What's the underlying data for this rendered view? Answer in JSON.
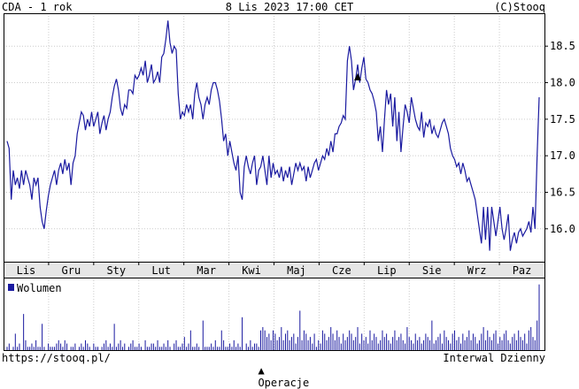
{
  "header": {
    "title": "CDA - 1 rok",
    "datetime": "8 Lis 2023 17:00 CET",
    "copyright": "(C)Stooq"
  },
  "footer": {
    "url": "https://stooq.pl/",
    "operations_marker": "▲",
    "operations_label": "Operacje",
    "interval": "Interwal Dzienny"
  },
  "chart_data": [
    {
      "type": "line",
      "series": [
        {
          "values": [
            17.2,
            17.1,
            16.4,
            16.8,
            16.6,
            16.7,
            16.55,
            16.8,
            16.6,
            16.8,
            16.7,
            16.6,
            16.4,
            16.7,
            16.6,
            16.7,
            16.3,
            16.1,
            16.0,
            16.25,
            16.45,
            16.6,
            16.7,
            16.8,
            16.6,
            16.8,
            16.9,
            16.75,
            16.95,
            16.8,
            16.9,
            16.6,
            16.9,
            17.0,
            17.3,
            17.45,
            17.6,
            17.55,
            17.35,
            17.5,
            17.4,
            17.6,
            17.4,
            17.5,
            17.6,
            17.3,
            17.45,
            17.55,
            17.35,
            17.5,
            17.6,
            17.8,
            17.95,
            18.05,
            17.9,
            17.65,
            17.55,
            17.7,
            17.65,
            17.9,
            17.9,
            17.85,
            18.1,
            18.05,
            18.1,
            18.2,
            18.1,
            18.3,
            18.0,
            18.1,
            18.25,
            18.0,
            18.05,
            18.15,
            18.0,
            18.35,
            18.4,
            18.6,
            18.85,
            18.55,
            18.4,
            18.5,
            18.45,
            17.85,
            17.5,
            17.6,
            17.55,
            17.7,
            17.6,
            17.7,
            17.5,
            17.85,
            18.0,
            17.8,
            17.7,
            17.5,
            17.7,
            17.8,
            17.7,
            17.9,
            18.0,
            18.0,
            17.9,
            17.75,
            17.5,
            17.2,
            17.3,
            17.0,
            17.2,
            17.05,
            16.9,
            16.8,
            17.0,
            16.5,
            16.4,
            16.85,
            17.0,
            16.85,
            16.75,
            16.9,
            17.0,
            16.6,
            16.8,
            16.85,
            17.0,
            16.8,
            16.6,
            17.0,
            16.7,
            16.9,
            16.75,
            16.8,
            16.7,
            16.85,
            16.65,
            16.8,
            16.7,
            16.85,
            16.6,
            16.75,
            16.9,
            16.8,
            16.9,
            16.8,
            16.85,
            16.65,
            16.85,
            16.7,
            16.8,
            16.9,
            16.95,
            16.8,
            16.9,
            17.0,
            16.95,
            17.1,
            17.0,
            17.2,
            17.05,
            17.3,
            17.3,
            17.4,
            17.45,
            17.55,
            17.5,
            18.3,
            18.5,
            18.3,
            17.9,
            18.05,
            18.25,
            18.0,
            18.2,
            18.35,
            18.05,
            18.0,
            17.9,
            17.85,
            17.75,
            17.6,
            17.2,
            17.4,
            17.05,
            17.5,
            17.9,
            17.7,
            17.85,
            17.4,
            17.8,
            17.2,
            17.6,
            17.05,
            17.4,
            17.7,
            17.6,
            17.45,
            17.8,
            17.65,
            17.5,
            17.4,
            17.35,
            17.6,
            17.25,
            17.45,
            17.4,
            17.5,
            17.3,
            17.4,
            17.3,
            17.25,
            17.35,
            17.45,
            17.5,
            17.4,
            17.3,
            17.1,
            17.0,
            16.95,
            16.85,
            16.9,
            16.75,
            16.9,
            16.8,
            16.65,
            16.7,
            16.6,
            16.5,
            16.4,
            16.2,
            16.0,
            15.8,
            16.3,
            15.85,
            16.3,
            15.7,
            16.3,
            16.1,
            15.9,
            16.1,
            16.3,
            16.0,
            15.85,
            16.0,
            16.2,
            15.7,
            15.85,
            15.95,
            15.8,
            15.95,
            16.0,
            15.9,
            15.95,
            16.0,
            16.1,
            15.95,
            16.3,
            16.0,
            17.0,
            17.8
          ]
        }
      ],
      "x_tick_labels": [
        "Lis",
        "Gru",
        "Sty",
        "Lut",
        "Mar",
        "Kwi",
        "Maj",
        "Cze",
        "Lip",
        "Sie",
        "Wrz",
        "Paz"
      ],
      "y_tick_labels": [
        "18.5",
        "18.0",
        "17.5",
        "17.0",
        "16.5",
        "16.0"
      ],
      "ylim": [
        15.55,
        18.95
      ],
      "grid": true,
      "markers": [
        {
          "index": 170,
          "symbol": "▲"
        }
      ],
      "line_color": "#1a1aa0",
      "marker_color": "#000000"
    },
    {
      "type": "bar",
      "legend": "Wolumen",
      "legend_placement": "top-left",
      "bar_color": "#1a1aa0",
      "values": [
        1,
        2,
        0,
        1,
        5,
        1,
        2,
        0,
        11,
        3,
        1,
        1,
        2,
        1,
        3,
        1,
        1,
        8,
        1,
        0,
        2,
        1,
        1,
        1,
        2,
        3,
        2,
        1,
        3,
        2,
        0,
        1,
        1,
        2,
        0,
        1,
        2,
        1,
        3,
        2,
        1,
        0,
        2,
        1,
        1,
        0,
        1,
        2,
        3,
        1,
        2,
        1,
        8,
        1,
        2,
        3,
        1,
        2,
        0,
        1,
        2,
        3,
        1,
        1,
        2,
        1,
        0,
        3,
        1,
        1,
        2,
        2,
        1,
        3,
        1,
        1,
        2,
        1,
        3,
        1,
        0,
        2,
        3,
        1,
        1,
        2,
        4,
        1,
        2,
        6,
        1,
        1,
        2,
        1,
        0,
        9,
        1,
        1,
        1,
        2,
        1,
        3,
        1,
        1,
        6,
        3,
        1,
        1,
        2,
        1,
        3,
        1,
        2,
        1,
        10,
        0,
        2,
        1,
        3,
        1,
        2,
        2,
        1,
        6,
        7,
        6,
        4,
        5,
        3,
        6,
        5,
        3,
        4,
        7,
        3,
        5,
        6,
        3,
        4,
        5,
        2,
        4,
        12,
        3,
        6,
        5,
        3,
        4,
        2,
        5,
        1,
        3,
        2,
        6,
        5,
        3,
        4,
        7,
        5,
        3,
        6,
        4,
        2,
        5,
        3,
        4,
        6,
        5,
        3,
        4,
        7,
        2,
        5,
        3,
        4,
        2,
        6,
        3,
        5,
        4,
        2,
        3,
        6,
        4,
        5,
        3,
        2,
        4,
        6,
        3,
        4,
        5,
        3,
        2,
        7,
        4,
        3,
        2,
        5,
        3,
        4,
        2,
        3,
        5,
        4,
        3,
        9,
        2,
        3,
        4,
        5,
        2,
        6,
        4,
        3,
        2,
        5,
        6,
        3,
        4,
        2,
        5,
        3,
        4,
        6,
        3,
        5,
        4,
        2,
        3,
        5,
        7,
        3,
        6,
        4,
        3,
        5,
        6,
        2,
        4,
        3,
        5,
        6,
        3,
        2,
        4,
        5,
        3,
        6,
        4,
        3,
        5,
        2,
        6,
        7,
        4,
        3,
        9,
        20
      ],
      "ylim": [
        0,
        21
      ]
    }
  ]
}
